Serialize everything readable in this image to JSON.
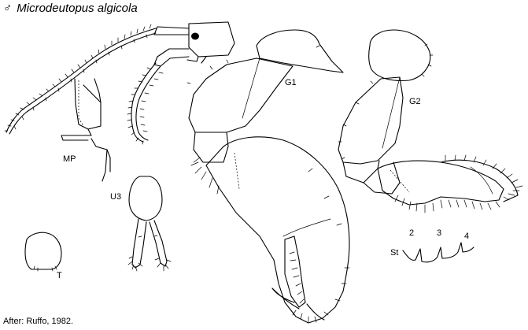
{
  "title": {
    "sex_symbol": "♂",
    "species": "Microdeutopus algicola"
  },
  "labels": {
    "mp": "MP",
    "u3": "U3",
    "t": "T",
    "g1": "G1",
    "g2": "G2",
    "st": "St",
    "st_2": "2",
    "st_3": "3",
    "st_4": "4"
  },
  "credit": "After: Ruffo, 1982."
}
